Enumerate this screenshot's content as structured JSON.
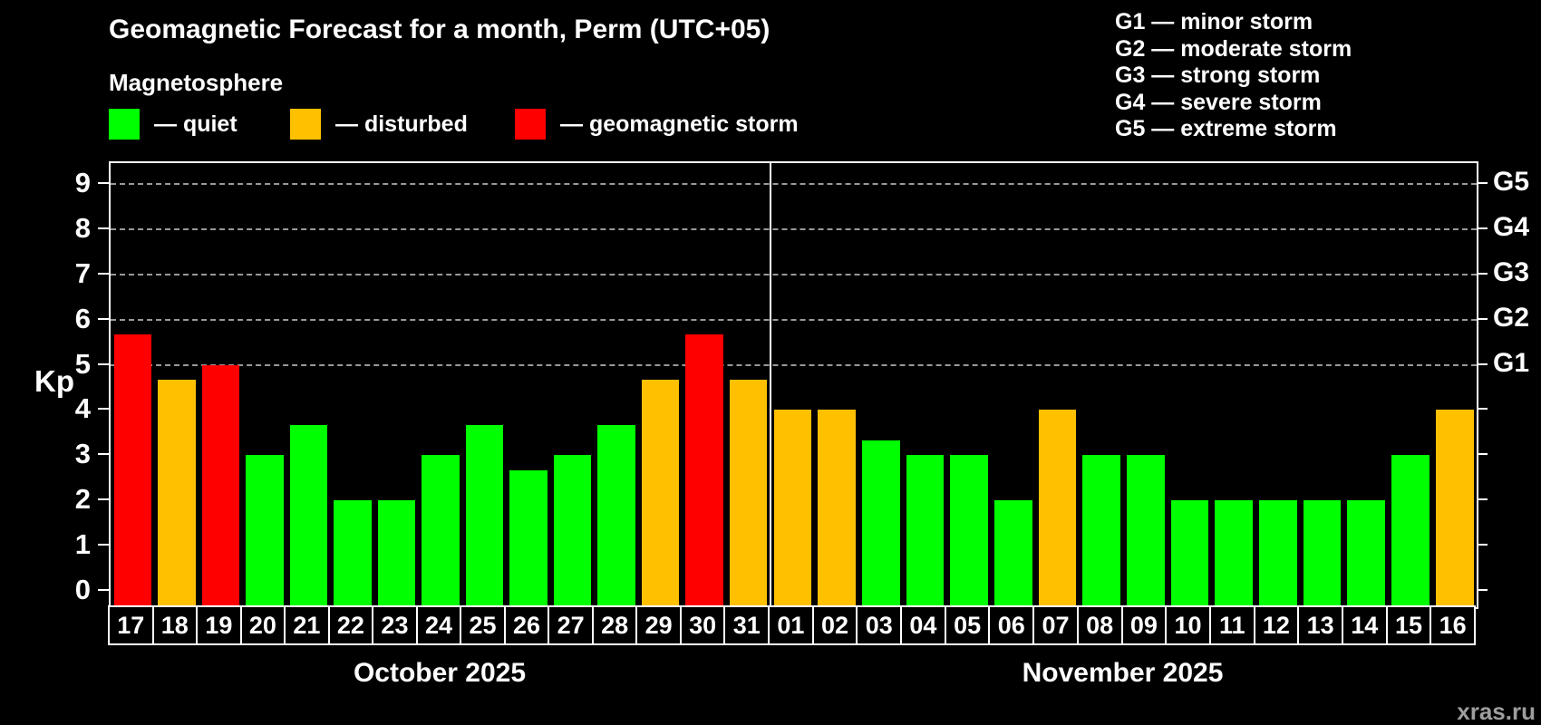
{
  "title": "Geomagnetic Forecast for a month, Perm (UTC+05)",
  "subtitle": "Magnetosphere",
  "legend": {
    "quiet": {
      "label": "— quiet",
      "color": "#00ff00"
    },
    "disturbed": {
      "label": "— disturbed",
      "color": "#ffc000"
    },
    "storm": {
      "label": "— geomagnetic storm",
      "color": "#ff0000"
    }
  },
  "storm_scale_legend": [
    "G1 — minor storm",
    "G2 — moderate storm",
    "G3 — strong storm",
    "G4 — severe storm",
    "G5 — extreme storm"
  ],
  "watermark": "xras.ru",
  "chart_data": {
    "type": "bar",
    "ylabel": "Kp",
    "ylim": [
      0,
      9
    ],
    "yticks": [
      0,
      1,
      2,
      3,
      4,
      5,
      6,
      7,
      8,
      9
    ],
    "gridlines": {
      "values": [
        5,
        6,
        7,
        8,
        9
      ],
      "style": "dashed",
      "color": "#999999"
    },
    "right_axis_labels": [
      {
        "label": "G1",
        "kp": 5
      },
      {
        "label": "G2",
        "kp": 6
      },
      {
        "label": "G3",
        "kp": 7
      },
      {
        "label": "G4",
        "kp": 8
      },
      {
        "label": "G5",
        "kp": 9
      }
    ],
    "colors": {
      "quiet": "#00ff00",
      "disturbed": "#ffc000",
      "storm": "#ff0000"
    },
    "months": [
      {
        "label": "October 2025",
        "days": [
          "17",
          "18",
          "19",
          "20",
          "21",
          "22",
          "23",
          "24",
          "25",
          "26",
          "27",
          "28",
          "29",
          "30",
          "31"
        ],
        "values": [
          5.67,
          4.67,
          5.0,
          3.0,
          3.67,
          2.0,
          2.0,
          3.0,
          3.67,
          2.67,
          3.0,
          3.67,
          4.67,
          5.67,
          4.67
        ],
        "status": [
          "storm",
          "disturbed",
          "storm",
          "quiet",
          "quiet",
          "quiet",
          "quiet",
          "quiet",
          "quiet",
          "quiet",
          "quiet",
          "quiet",
          "disturbed",
          "storm",
          "disturbed"
        ]
      },
      {
        "label": "November 2025",
        "days": [
          "01",
          "02",
          "03",
          "04",
          "05",
          "06",
          "07",
          "08",
          "09",
          "10",
          "11",
          "12",
          "13",
          "14",
          "15",
          "16"
        ],
        "values": [
          4.0,
          4.0,
          3.33,
          3.0,
          3.0,
          2.0,
          4.0,
          3.0,
          3.0,
          2.0,
          2.0,
          2.0,
          2.0,
          2.0,
          3.0,
          4.0
        ],
        "status": [
          "disturbed",
          "disturbed",
          "quiet",
          "quiet",
          "quiet",
          "quiet",
          "disturbed",
          "quiet",
          "quiet",
          "quiet",
          "quiet",
          "quiet",
          "quiet",
          "quiet",
          "quiet",
          "disturbed"
        ]
      }
    ]
  }
}
